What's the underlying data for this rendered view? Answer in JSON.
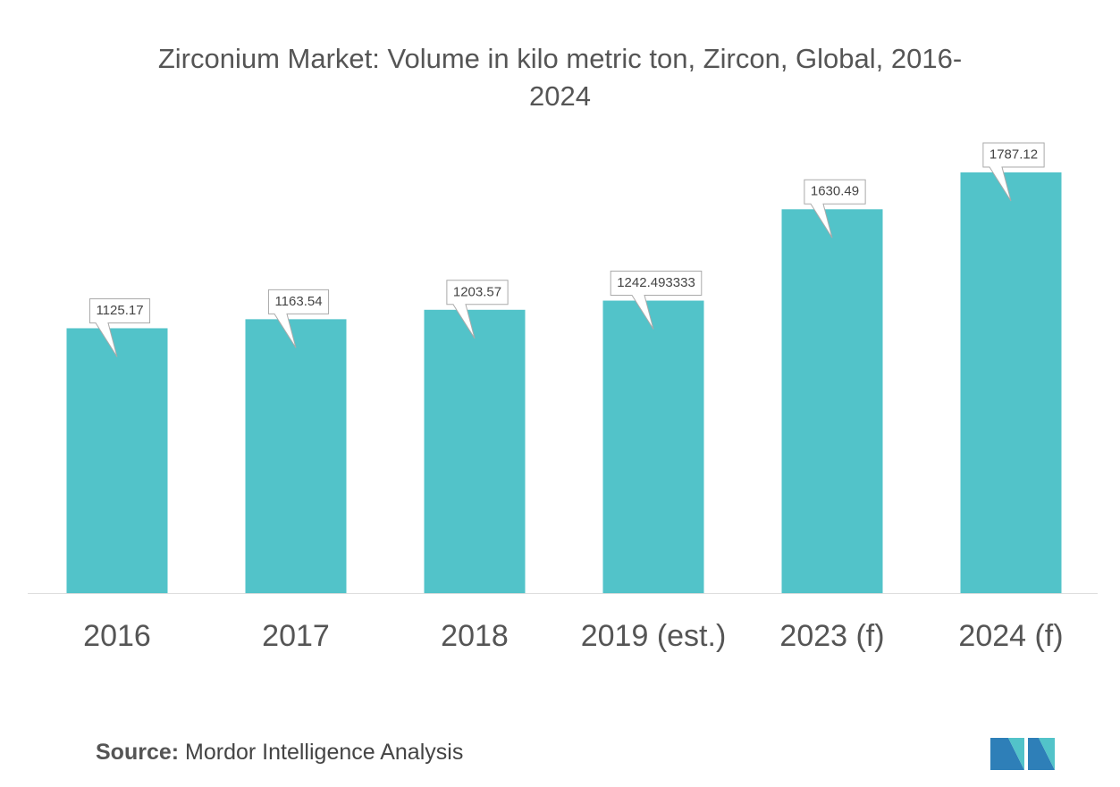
{
  "chart_data": {
    "type": "bar",
    "title": "Zirconium Market: Volume in kilo metric ton, Zircon, Global, 2016-2024",
    "categories": [
      "2016",
      "2017",
      "2018",
      "2019 (est.)",
      "2023 (f)",
      "2024 (f)"
    ],
    "values": [
      1125.17,
      1163.54,
      1203.57,
      1242.493333,
      1630.49,
      1787.12
    ],
    "color": "#52c3c9"
  },
  "footer": {
    "source_label": "Source:",
    "source_text": "Mordor Intelligence Analysis"
  }
}
